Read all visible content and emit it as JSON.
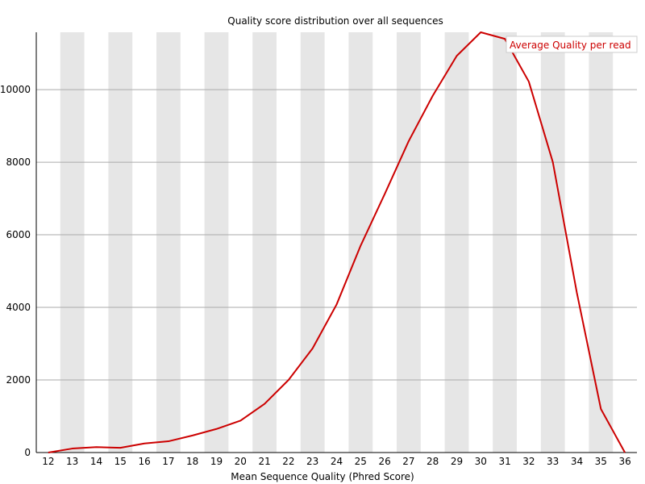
{
  "chart_data": {
    "type": "line",
    "title": "Quality score distribution over all sequences",
    "xlabel": "Mean Sequence Quality (Phred Score)",
    "ylabel": "",
    "x": [
      12,
      13,
      14,
      15,
      16,
      17,
      18,
      19,
      20,
      21,
      22,
      23,
      24,
      25,
      26,
      27,
      28,
      29,
      30,
      31,
      32,
      33,
      34,
      35,
      36
    ],
    "series": [
      {
        "name": "Average Quality per read",
        "color": "#cc0000",
        "values": [
          0,
          110,
          150,
          130,
          250,
          310,
          470,
          650,
          880,
          1340,
          2000,
          2870,
          4080,
          5700,
          7120,
          8580,
          9830,
          10930,
          11580,
          11400,
          10220,
          8000,
          4400,
          1200,
          0
        ]
      }
    ],
    "xlim": [
      12,
      36
    ],
    "ylim": [
      0,
      11580
    ],
    "yticks": [
      0,
      2000,
      4000,
      6000,
      8000,
      10000
    ],
    "stripes": "alternate-grey-columns",
    "grid": "horizontal",
    "legend_position": "top-right"
  }
}
